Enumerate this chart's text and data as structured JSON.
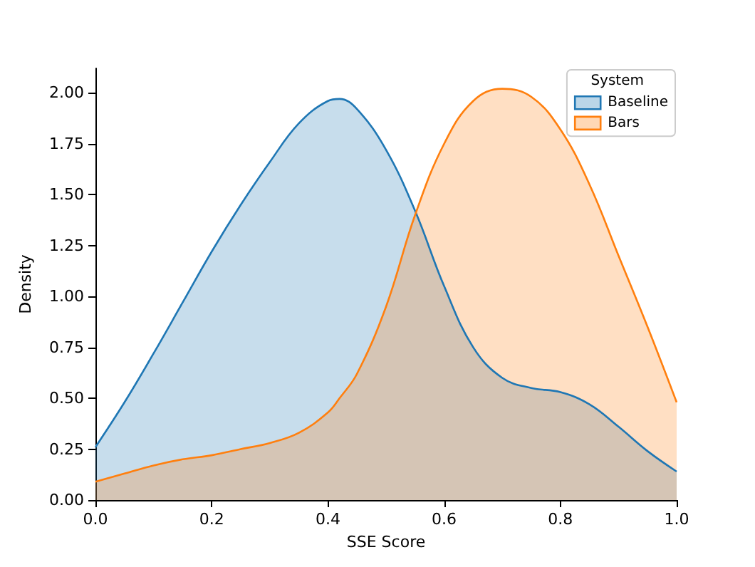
{
  "chart_data": {
    "type": "area",
    "xlabel": "SSE Score",
    "ylabel": "Density",
    "legend_title": "System",
    "legend": "top right",
    "grid": false,
    "marker": "none",
    "x": [
      0,
      0.05,
      0.1,
      0.15,
      0.2,
      0.25,
      0.3,
      0.35,
      0.4,
      0.42,
      0.45,
      0.5,
      0.55,
      0.6,
      0.65,
      0.7,
      0.75,
      0.8,
      0.85,
      0.9,
      0.95,
      1.0
    ],
    "series": [
      {
        "name": "Baseline",
        "color": "#1f77b4",
        "values": [
          0.26,
          0.48,
          0.72,
          0.97,
          1.22,
          1.45,
          1.66,
          1.85,
          1.96,
          1.97,
          1.92,
          1.72,
          1.42,
          1.05,
          0.75,
          0.6,
          0.55,
          0.53,
          0.47,
          0.36,
          0.24,
          0.14
        ]
      },
      {
        "name": "Bars",
        "color": "#ff7f0e",
        "values": [
          0.09,
          0.13,
          0.17,
          0.2,
          0.22,
          0.25,
          0.28,
          0.33,
          0.43,
          0.5,
          0.62,
          0.95,
          1.4,
          1.75,
          1.96,
          2.02,
          1.98,
          1.82,
          1.55,
          1.2,
          0.85,
          0.48
        ]
      }
    ],
    "xlim": [
      0,
      1
    ],
    "xticks": [
      {
        "value": 0,
        "label": "0.0"
      },
      {
        "value": 0.2,
        "label": "0.2"
      },
      {
        "value": 0.4,
        "label": "0.4"
      },
      {
        "value": 0.6,
        "label": "0.6"
      },
      {
        "value": 0.8,
        "label": "0.8"
      },
      {
        "value": 1,
        "label": "1.0"
      }
    ],
    "ylim": [
      0,
      2.12
    ],
    "yticks": [
      {
        "value": 0,
        "label": "0.00"
      },
      {
        "value": 0.25,
        "label": "0.25"
      },
      {
        "value": 0.5,
        "label": "0.50"
      },
      {
        "value": 0.75,
        "label": "0.75"
      },
      {
        "value": 1,
        "label": "1.00"
      },
      {
        "value": 1.25,
        "label": "1.25"
      },
      {
        "value": 1.5,
        "label": "1.50"
      },
      {
        "value": 1.75,
        "label": "1.75"
      },
      {
        "value": 2,
        "label": "2.00"
      }
    ]
  }
}
